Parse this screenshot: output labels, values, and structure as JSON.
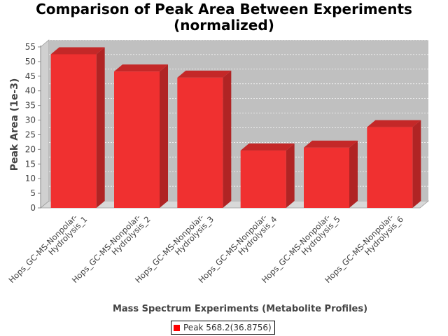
{
  "chart_data": {
    "type": "bar",
    "title_lines": [
      "Comparison of Peak Area Between Experiments",
      "(normalized)"
    ],
    "xlabel": "Mass Spectrum Experiments (Metabolite Profiles)",
    "ylabel": "Peak Area (1e-3)",
    "ylim": [
      0,
      55
    ],
    "yticks": [
      0,
      5,
      10,
      15,
      20,
      25,
      30,
      35,
      40,
      45,
      50,
      55
    ],
    "grid": true,
    "legend_position": "bottom-center",
    "categories": [
      [
        "Hops_GC-MS-Nonpolar-",
        "Hydrolysis_1"
      ],
      [
        "Hops_GC-MS-Nonpolar-",
        "Hydrolysis_2"
      ],
      [
        "Hops_GC-MS-Nonpolar-",
        "Hydrolysis_3"
      ],
      [
        "Hops_GC-MS-Nonpolar-",
        "Hydrolysis_4"
      ],
      [
        "Hops_GC-MS-Nonpolar-",
        "Hydrolysis_5"
      ],
      [
        "Hops_GC-MS-Nonpolar-",
        "Hydrolysis_6"
      ]
    ],
    "series": [
      {
        "name": "Peak 568.2(36.8756)",
        "values": [
          52.5,
          46.6,
          44.5,
          19.6,
          20.6,
          27.6
        ]
      }
    ],
    "colors": {
      "bar": "#f03030",
      "bar_top": "#c42828",
      "bar_side": "#b02424",
      "plot_bg": "#c0c0c0",
      "legend_swatch": "#ff0000"
    }
  }
}
